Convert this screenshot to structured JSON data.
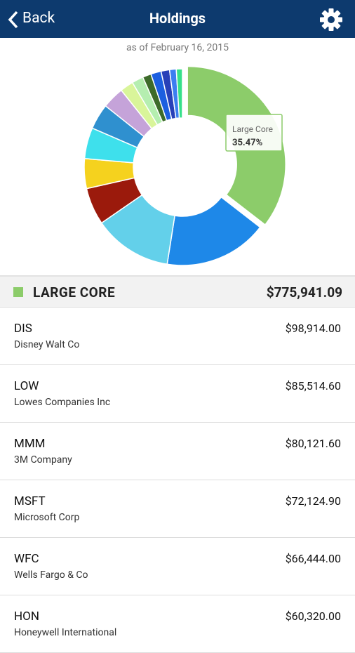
{
  "header": {
    "back": "Back",
    "title": "Holdings"
  },
  "date": "as of February 16, 2015",
  "chart_data": {
    "type": "pie",
    "donut": true,
    "categories": [
      "Large Core",
      null,
      null,
      null,
      null,
      null,
      null,
      null,
      null,
      null,
      null,
      null,
      null,
      null,
      null
    ],
    "values": [
      35.47,
      17,
      12.9,
      6.1,
      4.9,
      5.1,
      4.2,
      3.6,
      2.2,
      1.9,
      1.4,
      1.7,
      1.4,
      1.1,
      1.0
    ],
    "value_labels": [
      "35.47%",
      null,
      null,
      null,
      null,
      null,
      null,
      null,
      null,
      null,
      null,
      null,
      null,
      null,
      null
    ],
    "colors": [
      "#8ccc6a",
      "#1e88e8",
      "#63d0ea",
      "#9b1a0c",
      "#f5d21e",
      "#3ee0ec",
      "#2f90cf",
      "#c5a3d9",
      "#d9f59a",
      "#b5eeb0",
      "#3d6b2a",
      "#1c5fe0",
      "#2840b8",
      "#3b7ef0",
      "#36e08a"
    ]
  },
  "group": {
    "name": "LARGE CORE",
    "total": "$775,941.09"
  },
  "holdings": [
    {
      "symbol": "DIS",
      "name": "Disney Walt Co",
      "value": "$98,914.00"
    },
    {
      "symbol": "LOW",
      "name": "Lowes Companies Inc",
      "value": "$85,514.60"
    },
    {
      "symbol": "MMM",
      "name": "3M Company",
      "value": "$80,121.60"
    },
    {
      "symbol": "MSFT",
      "name": "Microsoft Corp",
      "value": "$72,124.90"
    },
    {
      "symbol": "WFC",
      "name": "Wells Fargo & Co",
      "value": "$66,444.00"
    },
    {
      "symbol": "HON",
      "name": "Honeywell International",
      "value": "$60,320.00"
    }
  ]
}
